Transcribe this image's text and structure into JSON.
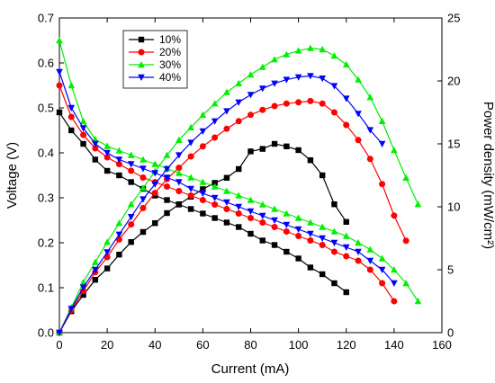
{
  "chart_data": {
    "type": "line",
    "xlabel": "Current (mA)",
    "ylabel_left": "Voltage (V)",
    "ylabel_right": "Power density (mW/cm²)",
    "xlim": [
      0,
      160
    ],
    "ylim_left": [
      0,
      0.7
    ],
    "ylim_right": [
      0,
      25
    ],
    "x_ticks": [
      "0",
      "20",
      "40",
      "60",
      "80",
      "100",
      "120",
      "140",
      "160"
    ],
    "y_left_ticks": [
      "0.0",
      "0.1",
      "0.2",
      "0.3",
      "0.4",
      "0.5",
      "0.6",
      "0.7"
    ],
    "y_right_ticks": [
      "0",
      "5",
      "10",
      "15",
      "20",
      "25"
    ],
    "grid": false,
    "legend_position": "top-left",
    "series": [
      {
        "name": "10%",
        "color": "#000000",
        "marker": "square",
        "voltage": {
          "x": [
            0,
            5,
            10,
            15,
            20,
            25,
            30,
            35,
            40,
            45,
            50,
            55,
            60,
            65,
            70,
            75,
            80,
            85,
            90,
            95,
            100,
            105,
            110,
            115,
            120
          ],
          "y": [
            0.49,
            0.45,
            0.42,
            0.385,
            0.36,
            0.35,
            0.335,
            0.32,
            0.305,
            0.295,
            0.285,
            0.275,
            0.265,
            0.255,
            0.245,
            0.235,
            0.22,
            0.205,
            0.195,
            0.18,
            0.165,
            0.145,
            0.13,
            0.11,
            0.09
          ]
        },
        "power": {
          "x": [
            0,
            5,
            10,
            15,
            20,
            25,
            30,
            35,
            40,
            45,
            50,
            55,
            60,
            65,
            70,
            75,
            80,
            85,
            90,
            95,
            100,
            105,
            110,
            115,
            120
          ],
          "y": [
            0,
            1.7,
            3.0,
            4.2,
            5.1,
            6.2,
            7.2,
            8.0,
            8.7,
            9.5,
            10.2,
            10.8,
            11.4,
            11.9,
            12.3,
            13.0,
            14.4,
            14.6,
            15.0,
            14.8,
            14.5,
            13.7,
            12.5,
            10.2,
            8.8
          ]
        }
      },
      {
        "name": "20%",
        "color": "#ff0000",
        "marker": "circle",
        "voltage": {
          "x": [
            0,
            5,
            10,
            15,
            20,
            25,
            30,
            35,
            40,
            45,
            50,
            55,
            60,
            65,
            70,
            75,
            80,
            85,
            90,
            95,
            100,
            105,
            110,
            115,
            120,
            125,
            130,
            135,
            140
          ],
          "y": [
            0.55,
            0.48,
            0.44,
            0.41,
            0.39,
            0.375,
            0.36,
            0.345,
            0.335,
            0.325,
            0.315,
            0.305,
            0.295,
            0.285,
            0.275,
            0.265,
            0.255,
            0.245,
            0.235,
            0.225,
            0.215,
            0.205,
            0.195,
            0.18,
            0.17,
            0.16,
            0.14,
            0.11,
            0.07
          ]
        },
        "power": {
          "x": [
            0,
            5,
            10,
            15,
            20,
            25,
            30,
            35,
            40,
            45,
            50,
            55,
            60,
            65,
            70,
            75,
            80,
            85,
            90,
            95,
            100,
            105,
            110,
            115,
            120,
            125,
            130,
            135,
            140,
            145
          ],
          "y": [
            0,
            1.8,
            3.3,
            4.8,
            6.0,
            7.4,
            8.6,
            9.9,
            11.1,
            12.2,
            13.1,
            14.0,
            14.8,
            15.5,
            16.2,
            16.8,
            17.3,
            17.7,
            18.0,
            18.2,
            18.3,
            18.4,
            18.2,
            17.5,
            16.5,
            15.3,
            13.8,
            11.8,
            9.3,
            7.3
          ]
        }
      },
      {
        "name": "30%",
        "color": "#00ee00",
        "marker": "triangle-up",
        "voltage": {
          "x": [
            0,
            5,
            10,
            15,
            20,
            25,
            30,
            35,
            40,
            45,
            50,
            55,
            60,
            65,
            70,
            75,
            80,
            85,
            90,
            95,
            100,
            105,
            110,
            115,
            120,
            125,
            130,
            135,
            140,
            145,
            150
          ],
          "y": [
            0.65,
            0.55,
            0.47,
            0.43,
            0.415,
            0.405,
            0.395,
            0.385,
            0.375,
            0.365,
            0.355,
            0.345,
            0.335,
            0.325,
            0.315,
            0.305,
            0.295,
            0.285,
            0.275,
            0.265,
            0.255,
            0.245,
            0.235,
            0.225,
            0.215,
            0.2,
            0.185,
            0.165,
            0.14,
            0.11,
            0.07
          ]
        },
        "power": {
          "x": [
            0,
            5,
            10,
            15,
            20,
            25,
            30,
            35,
            40,
            45,
            50,
            55,
            60,
            65,
            70,
            75,
            80,
            85,
            90,
            95,
            100,
            105,
            110,
            115,
            120,
            125,
            130,
            135,
            140,
            145,
            150
          ],
          "y": [
            0,
            2.0,
            4.0,
            5.6,
            7.2,
            8.7,
            10.2,
            11.5,
            12.8,
            14.1,
            15.3,
            16.3,
            17.3,
            18.2,
            19.1,
            19.8,
            20.5,
            21.1,
            21.7,
            22.1,
            22.4,
            22.6,
            22.5,
            22.0,
            21.3,
            20.1,
            18.7,
            16.8,
            14.5,
            12.3,
            10.2
          ]
        }
      },
      {
        "name": "40%",
        "color": "#0000ff",
        "marker": "triangle-down",
        "voltage": {
          "x": [
            0,
            5,
            10,
            15,
            20,
            25,
            30,
            35,
            40,
            45,
            50,
            55,
            60,
            65,
            70,
            75,
            80,
            85,
            90,
            95,
            100,
            105,
            110,
            115,
            120,
            125,
            130,
            135,
            140
          ],
          "y": [
            0.58,
            0.5,
            0.455,
            0.42,
            0.4,
            0.385,
            0.375,
            0.365,
            0.355,
            0.345,
            0.335,
            0.32,
            0.31,
            0.3,
            0.29,
            0.28,
            0.27,
            0.26,
            0.25,
            0.24,
            0.23,
            0.22,
            0.21,
            0.2,
            0.19,
            0.18,
            0.16,
            0.14,
            0.11
          ]
        },
        "power": {
          "x": [
            0,
            5,
            10,
            15,
            20,
            25,
            30,
            35,
            40,
            45,
            50,
            55,
            60,
            65,
            70,
            75,
            80,
            85,
            90,
            95,
            100,
            105,
            110,
            115,
            120,
            125,
            130,
            135
          ],
          "y": [
            0,
            1.9,
            3.6,
            5.0,
            6.4,
            7.8,
            9.2,
            10.6,
            11.8,
            13.0,
            14.1,
            15.1,
            16.0,
            16.8,
            17.6,
            18.3,
            18.9,
            19.4,
            19.8,
            20.1,
            20.3,
            20.4,
            20.2,
            19.6,
            18.6,
            17.4,
            16.1,
            15.0
          ]
        }
      }
    ]
  }
}
